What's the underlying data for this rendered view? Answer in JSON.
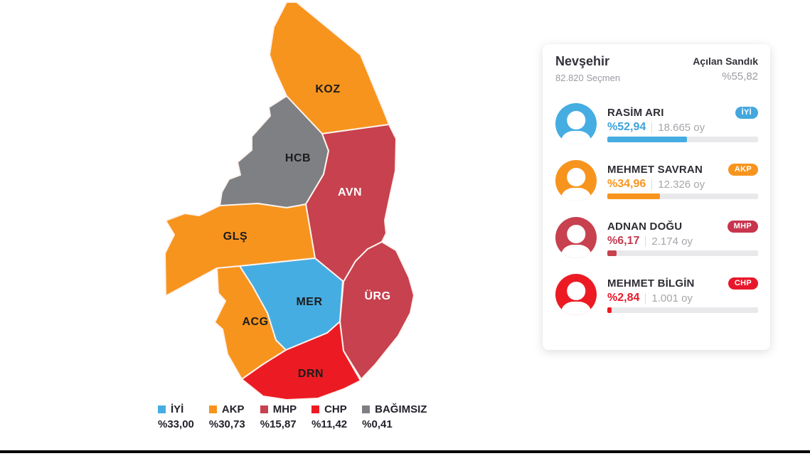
{
  "map": {
    "districts": [
      {
        "code": "KOZ",
        "party": "AKP",
        "color": "#F7941E",
        "label_color": "#1c1c1c"
      },
      {
        "code": "HCB",
        "party": "BAĞIMSIZ",
        "color": "#7F8083",
        "label_color": "#1c1c1c"
      },
      {
        "code": "AVN",
        "party": "MHP",
        "color": "#C7414F",
        "label_color": "#ffffff"
      },
      {
        "code": "GLŞ",
        "party": "AKP",
        "color": "#F7941E",
        "label_color": "#1c1c1c"
      },
      {
        "code": "MER",
        "party": "İYİ",
        "color": "#45ADE2",
        "label_color": "#1c1c1c"
      },
      {
        "code": "ÜRG",
        "party": "MHP",
        "color": "#C7414F",
        "label_color": "#ffffff"
      },
      {
        "code": "ACG",
        "party": "AKP",
        "color": "#F7941E",
        "label_color": "#1c1c1c"
      },
      {
        "code": "DRN",
        "party": "CHP",
        "color": "#EC1B23",
        "label_color": "#1c1c1c"
      }
    ]
  },
  "legend": {
    "items": [
      {
        "party": "İYİ",
        "percent": "%33,00",
        "color": "#45ADE2"
      },
      {
        "party": "AKP",
        "percent": "%30,73",
        "color": "#F7941E"
      },
      {
        "party": "MHP",
        "percent": "%15,87",
        "color": "#C7414F"
      },
      {
        "party": "CHP",
        "percent": "%11,42",
        "color": "#EC1B23"
      },
      {
        "party": "BAĞIMSIZ",
        "percent": "%0,41",
        "color": "#7F8083"
      }
    ]
  },
  "panel": {
    "title": "Nevşehir",
    "voters": "82.820 Seçmen",
    "opened_label": "Açılan Sandık",
    "opened_percent": "%55,82",
    "candidates": [
      {
        "name": "RASİM ARI",
        "party": "İYİ",
        "percent": "%52,94",
        "votes": "18.665 oy",
        "bar": 52.94,
        "color": "#45ADE2",
        "badge_color": "#44A7DE",
        "text_color": "#3EA2D9"
      },
      {
        "name": "MEHMET SAVRAN",
        "party": "AKP",
        "percent": "%34,96",
        "votes": "12.326 oy",
        "bar": 34.96,
        "color": "#F7941E",
        "badge_color": "#F7941E",
        "text_color": "#F7941E"
      },
      {
        "name": "ADNAN DOĞU",
        "party": "MHP",
        "percent": "%6,17",
        "votes": "2.174 oy",
        "bar": 6.17,
        "color": "#C7414F",
        "badge_color": "#C8354E",
        "text_color": "#C23A50"
      },
      {
        "name": "MEHMET BİLGİN",
        "party": "CHP",
        "percent": "%2,84",
        "votes": "1.001 oy",
        "bar": 2.84,
        "color": "#EC1B23",
        "badge_color": "#E8182B",
        "text_color": "#E8182B"
      }
    ]
  },
  "decor": {
    "bottom_bar_color": "#000000"
  }
}
